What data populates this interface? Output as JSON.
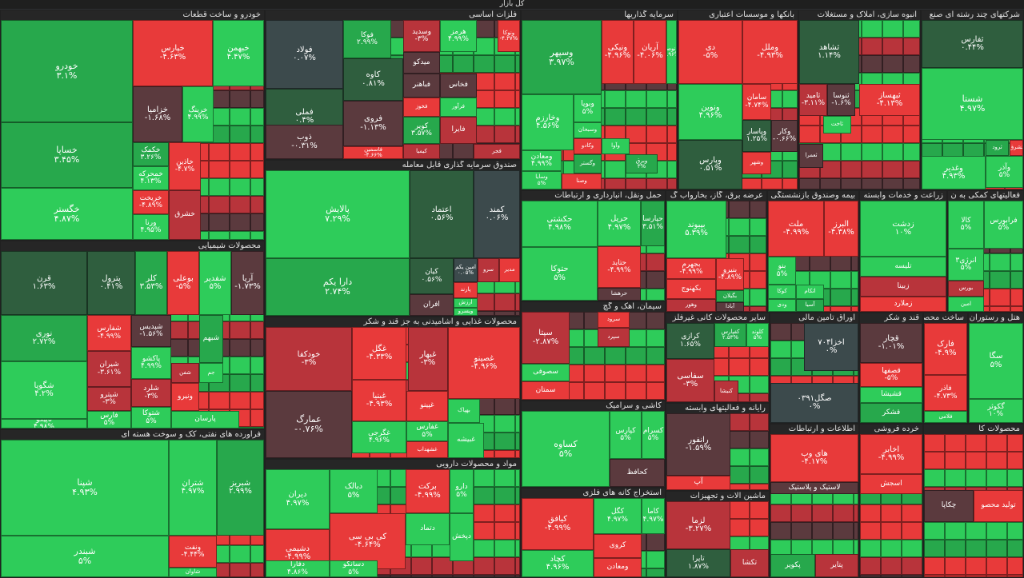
{
  "header": {
    "title": "کل بازار"
  },
  "colors": {
    "up_strong": "#2ecc5a",
    "up_mid": "#27a84c",
    "up_dark": "#2f5e3e",
    "neutral": "#3c4a4c",
    "down_dark": "#5b3a3e",
    "down_mid": "#b8343b",
    "down_strong": "#e83a3a"
  },
  "chart_data": {
    "type": "heatmap",
    "title": "کل بازار",
    "sectors": [
      {
        "name": "خودرو و ساخت قطعات",
        "tiles": [
          {
            "name": "خودرو",
            "value": "۳.۱%"
          },
          {
            "name": "خساپا",
            "value": "۳.۴۵%"
          },
          {
            "name": "خگستر",
            "value": "۴.۸۷%"
          },
          {
            "name": "خپارس",
            "value": "-۴.۶۳%"
          },
          {
            "name": "خبهمن",
            "value": "۴.۴۷%"
          },
          {
            "name": "خزامیا",
            "value": "-۱.۶۸%"
          },
          {
            "name": "خرینگ",
            "value": "۴.۹۹%"
          },
          {
            "name": "خکمک",
            "value": "۳.۲۶%"
          },
          {
            "name": "خمحرکه",
            "value": "۴.۱۳%"
          },
          {
            "name": "خاذین",
            "value": "-۴.۷%"
          },
          {
            "name": "خریخت",
            "value": "-۴.۸۹%"
          },
          {
            "name": "ورنا",
            "value": "۴.۹۵%"
          },
          {
            "name": "خشرق",
            "value": ""
          }
        ]
      },
      {
        "name": "فلزات اساسی",
        "tiles": [
          {
            "name": "فولاد",
            "value": "۰.۰۷%"
          },
          {
            "name": "فملی",
            "value": "۰.۴%"
          },
          {
            "name": "ذوب",
            "value": "-۰.۳۱%"
          },
          {
            "name": "فوکا",
            "value": "۲.۹۹%"
          },
          {
            "name": "کاوه",
            "value": "۰.۸۱%"
          },
          {
            "name": "فروی",
            "value": "-۱.۱۳%"
          },
          {
            "name": "فاسمین",
            "value": "-۴.۶۶%"
          },
          {
            "name": "وسدید",
            "value": "-۳%"
          },
          {
            "name": "هرمز",
            "value": "۴.۹۹%"
          },
          {
            "name": "ونوکا",
            "value": "-۴.۳۷%"
          },
          {
            "name": "میدکو",
            "value": ""
          },
          {
            "name": "فباهنر",
            "value": ""
          },
          {
            "name": "فخوز",
            "value": ""
          },
          {
            "name": "فخاس",
            "value": ""
          },
          {
            "name": "فرآور",
            "value": ""
          },
          {
            "name": "کویر",
            "value": "۳.۵۷%"
          },
          {
            "name": "کیمیا",
            "value": ""
          },
          {
            "name": "فایرا",
            "value": ""
          },
          {
            "name": "فجر",
            "value": ""
          }
        ]
      },
      {
        "name": "سرمایه گذاریها",
        "tiles": [
          {
            "name": "وسپهر",
            "value": "۳.۹۷%"
          },
          {
            "name": "ونیکی",
            "value": "-۴.۹۶%"
          },
          {
            "name": "آریان",
            "value": "-۴.۰۶%"
          },
          {
            "name": "ونوصا",
            "value": "۴.۹۶%"
          },
          {
            "name": "وخارزم",
            "value": "۴.۵۶%"
          },
          {
            "name": "وبوپا",
            "value": "۵%"
          },
          {
            "name": "وسبحان",
            "value": ""
          },
          {
            "name": "وکادو",
            "value": ""
          },
          {
            "name": "وآوا",
            "value": ""
          },
          {
            "name": "ومعادن",
            "value": "۴.۹۹%"
          },
          {
            "name": "وسایا",
            "value": "۵%"
          },
          {
            "name": "وگستر",
            "value": ""
          },
          {
            "name": "وبرق",
            "value": "۳%"
          },
          {
            "name": "وصنا",
            "value": ""
          }
        ]
      },
      {
        "name": "بانکها و موسسات اعتباری",
        "tiles": [
          {
            "name": "دی",
            "value": "-۵%"
          },
          {
            "name": "وملل",
            "value": "-۴.۹۳%"
          },
          {
            "name": "ونوین",
            "value": "۴.۹۶%"
          },
          {
            "name": "سامان",
            "value": "-۴.۷۴%"
          },
          {
            "name": "وپارس",
            "value": "۰.۵۱%"
          },
          {
            "name": "وپاسار",
            "value": "۱.۲۵%"
          },
          {
            "name": "وکار",
            "value": "-۰.۶۶%"
          },
          {
            "name": "وشهر",
            "value": ""
          }
        ]
      },
      {
        "name": "انبوه سازی، املاک و مستغلات",
        "tiles": [
          {
            "name": "ثشاهد",
            "value": "۱.۱۴%"
          },
          {
            "name": "ثامید",
            "value": "-۳.۱۱%"
          },
          {
            "name": "ثنوسا",
            "value": "-۱.۶%"
          },
          {
            "name": "ثبهساز",
            "value": "-۴.۱۳%"
          },
          {
            "name": "ثاخت",
            "value": ""
          },
          {
            "name": "ثعمرا",
            "value": ""
          }
        ]
      },
      {
        "name": "شرکتهای چند رشته ای صنع",
        "tiles": [
          {
            "name": "ثفارس",
            "value": "۰.۴۴%"
          },
          {
            "name": "شستا",
            "value": "۴.۹۷%"
          },
          {
            "name": "ثرود",
            "value": ""
          },
          {
            "name": "ثشرق",
            "value": ""
          },
          {
            "name": "وآذر",
            "value": "۵%"
          },
          {
            "name": "وغدیر",
            "value": "۴.۹۳%"
          }
        ]
      },
      {
        "name": "صندوق سرمایه گذاری قابل معامله",
        "tiles": [
          {
            "name": "پالایش",
            "value": "۷.۲۹%"
          },
          {
            "name": "دارا یکم",
            "value": "۲.۷۴%"
          },
          {
            "name": "اعتماد",
            "value": "۰.۵۶%"
          },
          {
            "name": "کمند",
            "value": "۰.۰۶%"
          },
          {
            "name": "کیان",
            "value": "۰.۵۶%"
          },
          {
            "name": "امین یکم",
            "value": "۰.۰۵%"
          },
          {
            "name": "افران",
            "value": ""
          },
          {
            "name": "سرو",
            "value": ""
          },
          {
            "name": "مدیر",
            "value": ""
          },
          {
            "name": "پارند",
            "value": ""
          },
          {
            "name": "ارزش",
            "value": ""
          },
          {
            "name": "ویسرو",
            "value": ""
          }
        ]
      },
      {
        "name": "حمل ونقل، انبارداری و ارتباطات",
        "tiles": [
          {
            "name": "حکشتی",
            "value": "۴.۹۸%"
          },
          {
            "name": "حتوکا",
            "value": "۵%"
          },
          {
            "name": "حریل",
            "value": "۴.۹۷%"
          },
          {
            "name": "حپارسا",
            "value": "۳.۵۱%"
          },
          {
            "name": "حتاید",
            "value": "-۴.۹۹%"
          },
          {
            "name": "حرهشا",
            "value": ""
          }
        ]
      },
      {
        "name": "عرضه برق، گاز، بخاروآب گ",
        "tiles": [
          {
            "name": "بپیوند",
            "value": "۵.۳۹%"
          },
          {
            "name": "بجهرم",
            "value": "-۴.۹۹%"
          },
          {
            "name": "بکهنوج",
            "value": ""
          },
          {
            "name": "وهور",
            "value": ""
          },
          {
            "name": "بنیرو",
            "value": "-۴.۸۹%"
          },
          {
            "name": "بگیلان",
            "value": ""
          },
          {
            "name": "آبادا",
            "value": ""
          }
        ]
      },
      {
        "name": "بیمه وصندوق بازنشستگی",
        "tiles": [
          {
            "name": "ملت",
            "value": "-۴.۹۹%"
          },
          {
            "name": "البرز",
            "value": "-۴.۳۸%"
          },
          {
            "name": "بنو",
            "value": "۵%"
          },
          {
            "name": "کوکا",
            "value": ""
          },
          {
            "name": "اتکام",
            "value": ""
          },
          {
            "name": "ودی",
            "value": ""
          },
          {
            "name": "آسیا",
            "value": ""
          }
        ]
      },
      {
        "name": "زراعت و خدمات وابسته",
        "tiles": [
          {
            "name": "زدشت",
            "value": "۱۰%"
          },
          {
            "name": "تلیسه",
            "value": ""
          },
          {
            "name": "زبینا",
            "value": ""
          },
          {
            "name": "زملارد",
            "value": ""
          }
        ]
      },
      {
        "name": "فعالیتهای کمکی به ن",
        "tiles": [
          {
            "name": "کالا",
            "value": "۵%"
          },
          {
            "name": "فرابورس",
            "value": "۵%"
          },
          {
            "name": "انرژی۳",
            "value": "۵%"
          },
          {
            "name": "بورس",
            "value": ""
          },
          {
            "name": "امین",
            "value": ""
          }
        ]
      },
      {
        "name": "محصولات شیمیایی",
        "tiles": [
          {
            "name": "قرن",
            "value": "۱.۶۳%"
          },
          {
            "name": "پترول",
            "value": "۰.۴۱%"
          },
          {
            "name": "کلر",
            "value": "۳.۵۳%"
          },
          {
            "name": "بوعلی",
            "value": "-۵%"
          },
          {
            "name": "شفدیر",
            "value": "۵%"
          },
          {
            "name": "آریا",
            "value": "-۱.۷۳%"
          },
          {
            "name": "نوری",
            "value": "۲.۷۲%"
          },
          {
            "name": "شگویا",
            "value": "۴.۲%"
          },
          {
            "name": "تاپیکو",
            "value": "۴.۹۸%"
          },
          {
            "name": "شفارس",
            "value": "-۴.۹۹%"
          },
          {
            "name": "شیران",
            "value": "-۳.۶۱%"
          },
          {
            "name": "شپترو",
            "value": "-۳%"
          },
          {
            "name": "فارس",
            "value": "۵%"
          },
          {
            "name": "شپدیس",
            "value": "-۱.۵۶%"
          },
          {
            "name": "پاکشو",
            "value": "۴.۹۹%"
          },
          {
            "name": "شلرد",
            "value": "-۳%"
          },
          {
            "name": "شتوکا",
            "value": "۵%"
          },
          {
            "name": "پارسان",
            "value": ""
          },
          {
            "name": "شبهم",
            "value": ""
          },
          {
            "name": "شفن",
            "value": ""
          },
          {
            "name": "جم",
            "value": ""
          },
          {
            "name": "ونیرو",
            "value": ""
          }
        ]
      },
      {
        "name": "فراورده های نفتی، کک و سوخت هسته ای",
        "tiles": [
          {
            "name": "شپنا",
            "value": "۴.۹۳%"
          },
          {
            "name": "شبندر",
            "value": "۵%"
          },
          {
            "name": "شتران",
            "value": "۴.۹۷%"
          },
          {
            "name": "شبریز",
            "value": "۲.۹۹%"
          },
          {
            "name": "ونفت",
            "value": "-۴.۴۴%"
          },
          {
            "name": "شاوان",
            "value": ""
          }
        ]
      },
      {
        "name": "محصولات غذایی و آشامیدنی به جز قند و شکر",
        "tiles": [
          {
            "name": "خودکفا",
            "value": "-۳%"
          },
          {
            "name": "عمارگ",
            "value": "-۰.۷۶%"
          },
          {
            "name": "غگل",
            "value": "-۴.۳۳%"
          },
          {
            "name": "غبهار",
            "value": "-۳%"
          },
          {
            "name": "غصینو",
            "value": "-۴.۹۶%"
          },
          {
            "name": "غبنیا",
            "value": "-۴.۹۳%"
          },
          {
            "name": "غگرجی",
            "value": "۴.۹۶%"
          },
          {
            "name": "غفارس",
            "value": "۵%"
          },
          {
            "name": "غپینو",
            "value": ""
          },
          {
            "name": "غشهداب",
            "value": ""
          },
          {
            "name": "غشاذر",
            "value": "۱.۳۶%"
          },
          {
            "name": "بهپاک",
            "value": ""
          },
          {
            "name": "غبیشه",
            "value": ""
          }
        ]
      },
      {
        "name": "سیمان، آهک و گچ",
        "tiles": [
          {
            "name": "سپتا",
            "value": "-۲.۸۷%"
          },
          {
            "name": "سصوفی",
            "value": ""
          },
          {
            "name": "سمتان",
            "value": ""
          },
          {
            "name": "سپرد",
            "value": ""
          },
          {
            "name": "سرود",
            "value": ""
          }
        ]
      },
      {
        "name": "کاشی و سرامیک",
        "tiles": [
          {
            "name": "کساوه",
            "value": "۵%"
          },
          {
            "name": "کپارس",
            "value": "۵%"
          },
          {
            "name": "کسرام",
            "value": "۵%"
          },
          {
            "name": "کحافظ",
            "value": ""
          }
        ]
      },
      {
        "name": "مواد و محصولات دارویی",
        "tiles": [
          {
            "name": "دیران",
            "value": "۴.۹۷%"
          },
          {
            "name": "دشیمی",
            "value": "-۴.۹۹%"
          },
          {
            "name": "دفارا",
            "value": "۴.۸۶%"
          },
          {
            "name": "دبالک",
            "value": "۵%"
          },
          {
            "name": "کی بی سی",
            "value": "-۴.۶۴%"
          },
          {
            "name": "دسانکو",
            "value": "۵%"
          },
          {
            "name": "برکت",
            "value": "-۴.۹۹%"
          },
          {
            "name": "دارو",
            "value": "۵%"
          },
          {
            "name": "دتماد",
            "value": ""
          },
          {
            "name": "دپخش",
            "value": ""
          }
        ]
      },
      {
        "name": "استخراج کانه های فلزی",
        "tiles": [
          {
            "name": "کیافق",
            "value": "-۴.۹۹%"
          },
          {
            "name": "کچاد",
            "value": "۴.۹۶%"
          },
          {
            "name": "کگل",
            "value": "۴.۹۷%"
          },
          {
            "name": "کاما",
            "value": "۴.۹۷%"
          },
          {
            "name": "کروی",
            "value": ""
          },
          {
            "name": "ومعادن",
            "value": ""
          }
        ]
      },
      {
        "name": "سایر محصولات کانی غیرفلز",
        "tiles": [
          {
            "name": "کرازی",
            "value": "۱.۶۵%"
          },
          {
            "name": "کفپارس",
            "value": "۲.۵۳%"
          },
          {
            "name": "کلوند",
            "value": "۵%"
          },
          {
            "name": "سفاسی",
            "value": "-۳%"
          },
          {
            "name": "کنیشا",
            "value": ""
          }
        ]
      },
      {
        "name": "رایانه و فعالیتهای وابسته",
        "tiles": [
          {
            "name": "رانفور",
            "value": "-۱.۵۹%"
          },
          {
            "name": "آپ",
            "value": ""
          }
        ]
      },
      {
        "name": "ماشین آلات و تجهیزات",
        "tiles": [
          {
            "name": "لزما",
            "value": "-۳.۲۷%"
          },
          {
            "name": "تاپرا",
            "value": "۱.۸۷%"
          },
          {
            "name": "تکشا",
            "value": ""
          }
        ]
      },
      {
        "name": "اوراق تامین مالی",
        "tiles": [
          {
            "name": "اخزا۷۰۴",
            "value": "۰%"
          },
          {
            "name": "صگل۰۳۹۱",
            "value": "۰%"
          }
        ]
      },
      {
        "name": "قند و شکر",
        "tiles": [
          {
            "name": "قچار",
            "value": "-۱.۰۱%"
          },
          {
            "name": "قصفها",
            "value": "-۵%"
          },
          {
            "name": "قشیشا",
            "value": ""
          },
          {
            "name": "قشکر",
            "value": ""
          }
        ]
      },
      {
        "name": "ساخت محصولا",
        "tiles": [
          {
            "name": "فارک",
            "value": "-۴.۹%"
          },
          {
            "name": "فاذر",
            "value": "-۴.۷۳%"
          },
          {
            "name": "فلامی",
            "value": ""
          }
        ]
      },
      {
        "name": "هتل و رستوران",
        "tiles": [
          {
            "name": "سگا",
            "value": "۵%"
          },
          {
            "name": "گکوثر",
            "value": "۱۰%"
          }
        ]
      },
      {
        "name": "اطلاعات و ارتباطات",
        "tiles": [
          {
            "name": "های وب",
            "value": "-۴.۱۷%"
          },
          {
            "name": "لاستیک و پلاستیک",
            "value": ""
          },
          {
            "name": "پکویر",
            "value": ""
          },
          {
            "name": "پتایر",
            "value": ""
          }
        ]
      },
      {
        "name": "خرده فروشی",
        "tiles": [
          {
            "name": "اخابر",
            "value": "-۴.۹۹%"
          },
          {
            "name": "اسجش",
            "value": ""
          }
        ]
      },
      {
        "name": "محصولات کا",
        "tiles": [
          {
            "name": "چکاپا",
            "value": ""
          },
          {
            "name": "تولید محصو",
            "value": ""
          }
        ]
      }
    ]
  }
}
